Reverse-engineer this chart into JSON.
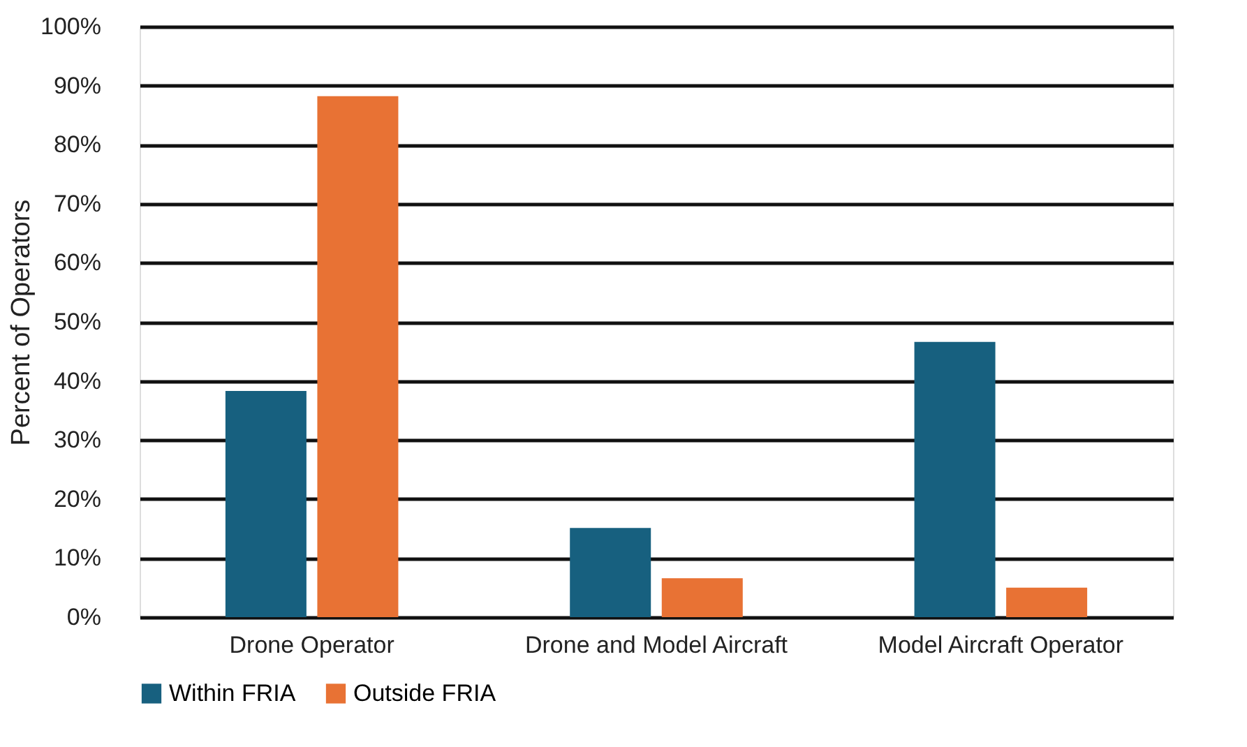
{
  "chart_data": {
    "type": "bar",
    "ylabel": "Percent of Operators",
    "categories": [
      "Drone Operator",
      "Drone and Model Aircraft",
      "Model Aircraft Operator"
    ],
    "series": [
      {
        "name": "Within FRIA",
        "color": "#17607f",
        "values": [
          38.3,
          15.1,
          46.6
        ]
      },
      {
        "name": "Outside FRIA",
        "color": "#e87234",
        "values": [
          88.2,
          6.6,
          5.0
        ]
      }
    ],
    "ylim": [
      0,
      100
    ],
    "yticks": [
      {
        "value": 0,
        "label": "0%"
      },
      {
        "value": 10,
        "label": "10%"
      },
      {
        "value": 20,
        "label": "20%"
      },
      {
        "value": 30,
        "label": "30%"
      },
      {
        "value": 40,
        "label": "40%"
      },
      {
        "value": 50,
        "label": "50%"
      },
      {
        "value": 60,
        "label": "60%"
      },
      {
        "value": 70,
        "label": "70%"
      },
      {
        "value": 80,
        "label": "80%"
      },
      {
        "value": 90,
        "label": "90%"
      },
      {
        "value": 100,
        "label": "100%"
      }
    ],
    "grid": "y",
    "legend": "bottom"
  }
}
